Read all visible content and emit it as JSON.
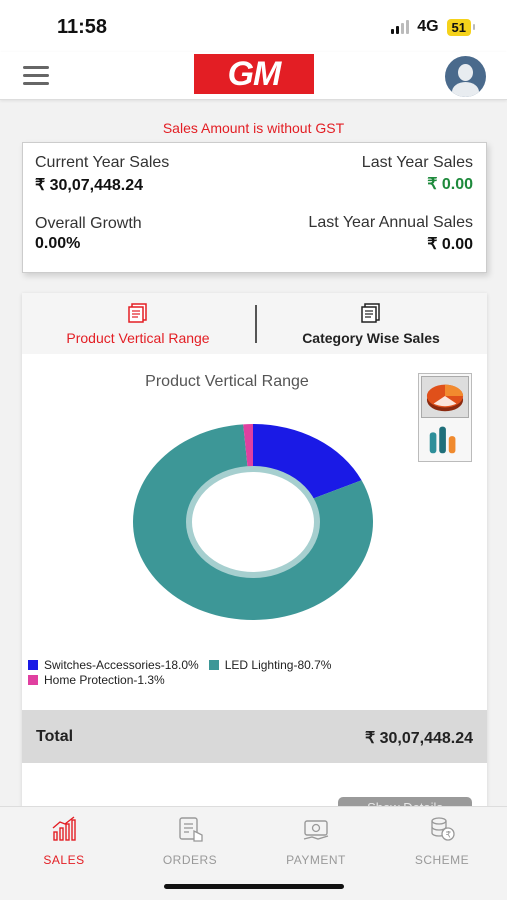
{
  "status": {
    "time": "11:58",
    "network": "4G",
    "battery": "51"
  },
  "header": {
    "logo_text": "GM"
  },
  "notice": "Sales Amount is without GST",
  "summary": {
    "current_year_label": "Current Year Sales",
    "current_year_value": "₹ 30,07,448.24",
    "last_year_label": "Last Year Sales",
    "last_year_value": "₹ 0.00",
    "growth_label": "Overall Growth",
    "growth_value": "0.00%",
    "last_year_annual_label": "Last Year Annual Sales",
    "last_year_annual_value": "₹ 0.00"
  },
  "tabs": [
    {
      "label": "Product Vertical Range",
      "icon": "document-icon",
      "active": true
    },
    {
      "label": "Category Wise Sales",
      "icon": "document-icon",
      "active": false
    }
  ],
  "chart_data": {
    "type": "pie",
    "title": "Product Vertical Range",
    "donut": true,
    "series": [
      {
        "name": "Switches-Accessories-18.0%",
        "value": 18.0,
        "color": "#1a1ae6"
      },
      {
        "name": "LED Lighting-80.7%",
        "value": 80.7,
        "color": "#3d9797"
      },
      {
        "name": "Home Protection-1.3%",
        "value": 1.3,
        "color": "#e040a0"
      }
    ]
  },
  "total": {
    "label": "Total",
    "value": "₹ 30,07,448.24"
  },
  "show_details": "Show Details",
  "bottom_nav": [
    {
      "label": "SALES",
      "icon": "sales-chart-icon",
      "active": true
    },
    {
      "label": "ORDERS",
      "icon": "orders-icon",
      "active": false
    },
    {
      "label": "PAYMENT",
      "icon": "payment-icon",
      "active": false
    },
    {
      "label": "SCHEME",
      "icon": "scheme-icon",
      "active": false
    }
  ]
}
